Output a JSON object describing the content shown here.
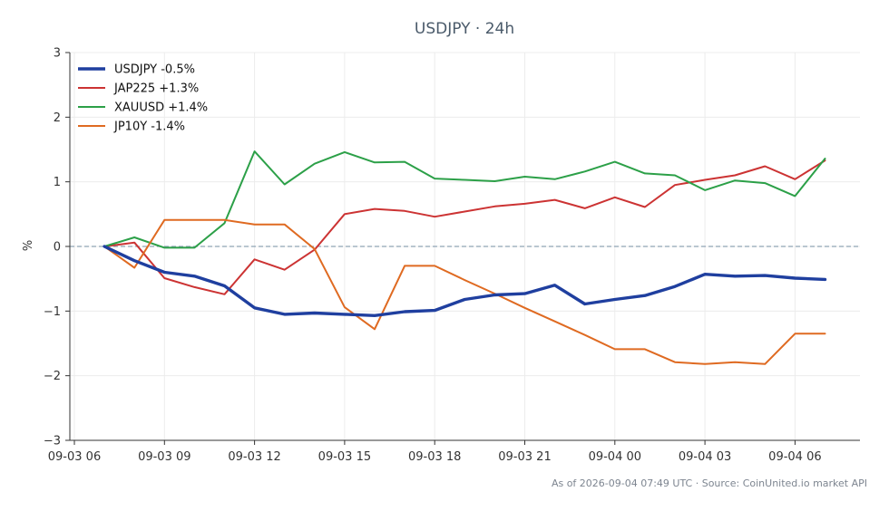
{
  "chart_data": {
    "type": "line",
    "title": "USDJPY · 24h",
    "ylabel": "%",
    "xlabel": "",
    "ylim": [
      -3,
      3
    ],
    "yticks": [
      "−3",
      "−2",
      "−1",
      "0",
      "1",
      "2",
      "3"
    ],
    "xticks": [
      "09-03 06",
      "09-03 09",
      "09-03 12",
      "09-03 15",
      "09-03 18",
      "09-03 21",
      "09-04 00",
      "09-04 03",
      "09-04 06"
    ],
    "grid": true,
    "legend_position": "top-left",
    "zero_line": true,
    "x_hours": [
      7,
      8,
      9,
      10,
      11,
      12,
      13,
      14,
      15,
      16,
      17,
      18,
      19,
      20,
      21,
      22,
      23,
      24,
      25,
      26,
      27,
      28,
      29,
      30,
      31
    ],
    "series": [
      {
        "name": "USDJPY -0.5%",
        "color": "#1f3f9f",
        "width": 3.4,
        "values": [
          0.0,
          -0.22,
          -0.4,
          -0.46,
          -0.61,
          -0.95,
          -1.05,
          -1.03,
          -1.05,
          -1.07,
          -1.01,
          -0.99,
          -0.82,
          -0.75,
          -0.73,
          -0.6,
          -0.89,
          -0.82,
          -0.76,
          -0.62,
          -0.43,
          -0.46,
          -0.45,
          -0.49,
          -0.51
        ]
      },
      {
        "name": "JAP225 +1.3%",
        "color": "#cc3333",
        "width": 2,
        "values": [
          0.0,
          0.06,
          -0.49,
          -0.63,
          -0.74,
          -0.2,
          -0.36,
          -0.05,
          0.5,
          0.58,
          0.55,
          0.46,
          0.54,
          0.62,
          0.66,
          0.72,
          0.59,
          0.76,
          0.61,
          0.95,
          1.03,
          1.1,
          1.24,
          1.04,
          1.33
        ]
      },
      {
        "name": "XAUUSD +1.4%",
        "color": "#2ca048",
        "width": 2,
        "values": [
          0.0,
          0.14,
          -0.02,
          -0.02,
          0.36,
          1.47,
          0.96,
          1.28,
          1.46,
          1.3,
          1.31,
          1.05,
          1.03,
          1.01,
          1.08,
          1.04,
          1.16,
          1.31,
          1.13,
          1.1,
          0.87,
          1.02,
          0.98,
          0.78,
          1.36
        ]
      },
      {
        "name": "JP10Y -1.4%",
        "color": "#df6a21",
        "width": 2,
        "values": [
          0.0,
          -0.33,
          0.41,
          0.41,
          0.41,
          0.34,
          0.34,
          -0.04,
          -0.94,
          -1.28,
          -0.3,
          -0.3,
          -0.52,
          -0.73,
          -0.95,
          -1.16,
          -1.37,
          -1.59,
          -1.59,
          -1.79,
          -1.82,
          -1.79,
          -1.82,
          -1.35,
          -1.35
        ]
      }
    ]
  },
  "footer": "As of 2026-09-04 07:49 UTC · Source: CoinUnited.io market API"
}
